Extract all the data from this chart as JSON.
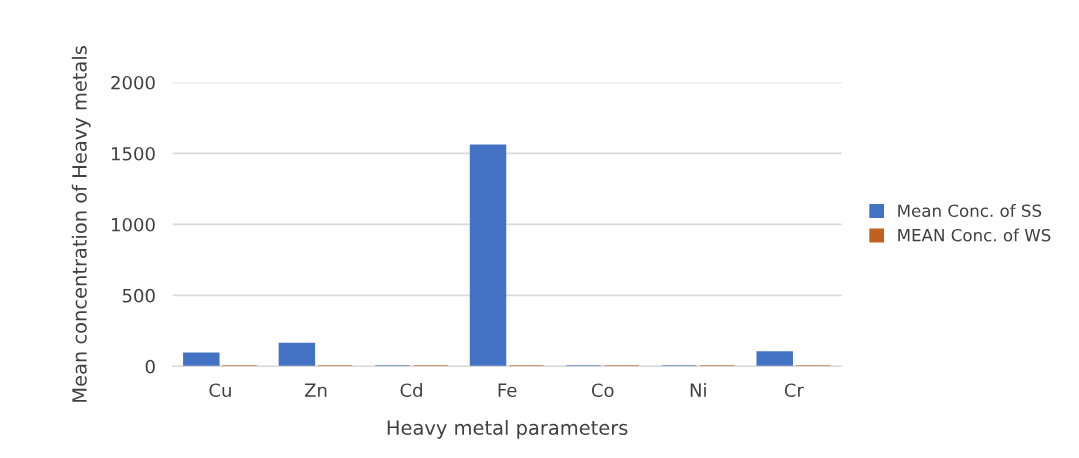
{
  "chart_data": {
    "type": "bar",
    "xlabel": "Heavy metal parameters",
    "ylabel": "Mean concentration of Heavy metals",
    "categories": [
      "Cu",
      "Zn",
      "Cd",
      "Fe",
      "Co",
      "Ni",
      "Cr"
    ],
    "series": [
      {
        "name": "Mean Conc. of SS",
        "color": "#4472c4",
        "values": [
          90,
          160,
          0,
          1555,
          0,
          0,
          100
        ]
      },
      {
        "name": "MEAN Conc. of WS",
        "color": "#c0601f",
        "values": [
          0,
          0,
          0,
          0,
          0,
          0,
          0
        ]
      }
    ],
    "ylim": [
      0,
      2000
    ],
    "yticks": [
      0,
      500,
      1000,
      1500,
      2000
    ],
    "grid": "y",
    "legend": "right"
  }
}
